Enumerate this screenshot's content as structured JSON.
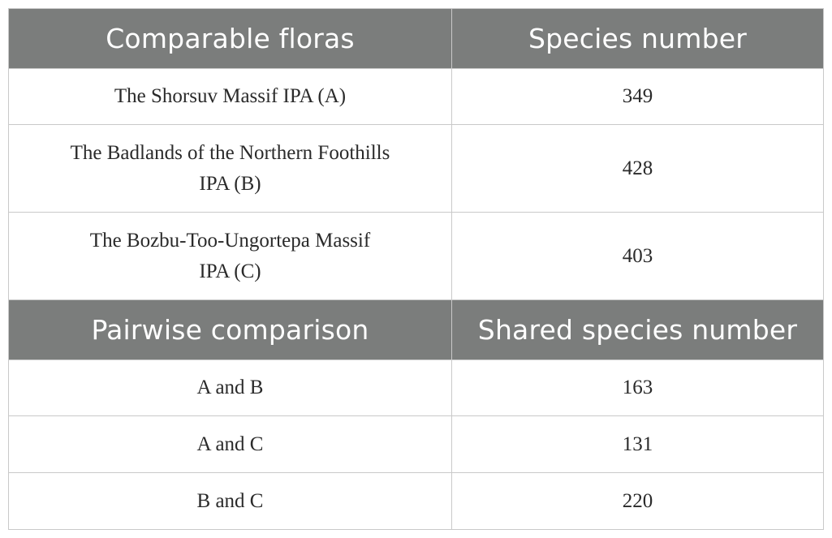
{
  "table": {
    "section1": {
      "headers": [
        "Comparable floras",
        "Species number"
      ],
      "rows": [
        {
          "label": "The Shorsuv Massif IPA (A)",
          "value": "349"
        },
        {
          "label_line1": "The Badlands of the Northern Foothills",
          "label_line2": "IPA (B)",
          "value": "428"
        },
        {
          "label_line1": "The Bozbu-Too-Ungortepa Massif",
          "label_line2": "IPA (C)",
          "value": "403"
        }
      ]
    },
    "section2": {
      "headers": [
        "Pairwise comparison",
        "Shared species number"
      ],
      "rows": [
        {
          "label": "A and B",
          "value": "163"
        },
        {
          "label": "A and C",
          "value": "131"
        },
        {
          "label": "B and C",
          "value": "220"
        }
      ]
    }
  },
  "colors": {
    "header_bg": "#7b7d7c",
    "header_text": "#ffffff",
    "border": "#c9c9c9",
    "body_text": "#2a2a2a"
  }
}
